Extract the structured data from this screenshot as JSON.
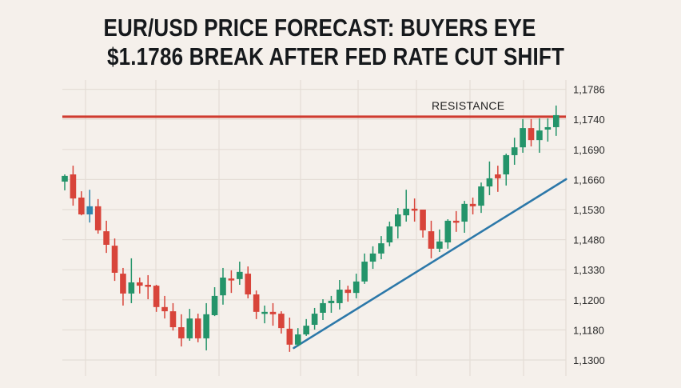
{
  "chart_data": {
    "type": "candlestick",
    "title_lines": [
      "EUR/USD PRICE FORECAST: BUYERS EYE",
      "$1.1786 BREAK AFTER FED RATE CUT SHIFT"
    ],
    "y_unit_note": "levels 0-9 correspond to the printed tick labels, bottom to top",
    "y_ticks": [
      {
        "level": 9,
        "label": "1,1786"
      },
      {
        "level": 8,
        "label": "1,1740"
      },
      {
        "level": 7,
        "label": "1,1690"
      },
      {
        "level": 6,
        "label": "1,1660"
      },
      {
        "level": 5,
        "label": "1,1530"
      },
      {
        "level": 4,
        "label": "1,1480"
      },
      {
        "level": 3,
        "label": "1,1330"
      },
      {
        "level": 2,
        "label": "1,1200"
      },
      {
        "level": 1,
        "label": "1,1180"
      },
      {
        "level": 0,
        "label": "1,1300"
      }
    ],
    "ylim": [
      -0.5,
      9.3
    ],
    "grid": true,
    "colors": {
      "up": "#24946a",
      "down": "#d8443a",
      "neutral": "#2f85ad",
      "resistance": "#cf3b2f",
      "trendline": "#2c78a9",
      "grid": "#e4ddd6"
    },
    "resistance": {
      "label": "RESISTANCE",
      "level": 8.09
    },
    "trendline": {
      "from": {
        "index": 27.5,
        "level": 0.4
      },
      "to": {
        "index": 60.2,
        "level": 6.01
      }
    },
    "candles": [
      [
        5.93,
        6.17,
        5.64,
        6.12
      ],
      [
        6.17,
        6.46,
        5.13,
        5.37
      ],
      [
        5.4,
        5.61,
        4.81,
        4.84
      ],
      [
        5.11,
        5.66,
        4.57,
        4.84,
        "neutral"
      ],
      [
        5.11,
        5.35,
        4.2,
        4.31
      ],
      [
        4.28,
        4.63,
        3.56,
        3.83
      ],
      [
        3.8,
        4.04,
        2.63,
        2.9
      ],
      [
        2.87,
        3.06,
        1.81,
        2.21
      ],
      [
        2.21,
        3.38,
        1.89,
        2.58
      ],
      [
        2.58,
        2.74,
        2.21,
        2.47
      ],
      [
        2.5,
        2.82,
        2.02,
        2.45
      ],
      [
        2.47,
        2.5,
        1.6,
        1.76
      ],
      [
        1.76,
        2.13,
        1.38,
        1.62
      ],
      [
        1.62,
        1.89,
        0.98,
        1.09
      ],
      [
        1.09,
        1.52,
        0.45,
        0.72
      ],
      [
        0.72,
        1.7,
        0.64,
        1.38
      ],
      [
        1.38,
        1.54,
        0.59,
        0.72
      ],
      [
        0.72,
        1.89,
        0.32,
        1.52
      ],
      [
        1.49,
        2.42,
        1.46,
        2.13
      ],
      [
        2.15,
        3.06,
        1.84,
        2.74
      ],
      [
        2.71,
        2.98,
        2.23,
        2.66
      ],
      [
        2.69,
        3.27,
        2.5,
        2.93
      ],
      [
        2.87,
        3.11,
        2.05,
        2.18
      ],
      [
        2.18,
        2.31,
        1.36,
        1.6
      ],
      [
        1.54,
        1.81,
        1.22,
        1.6
      ],
      [
        1.6,
        1.89,
        1.14,
        1.52
      ],
      [
        1.54,
        1.62,
        0.88,
        1.06
      ],
      [
        1.04,
        1.41,
        0.27,
        0.51
      ],
      [
        0.51,
        1.06,
        0.45,
        0.85
      ],
      [
        0.85,
        1.36,
        0.8,
        1.14
      ],
      [
        1.17,
        1.73,
        1.01,
        1.54
      ],
      [
        1.57,
        2.02,
        1.33,
        1.89
      ],
      [
        1.89,
        2.13,
        1.57,
        1.97
      ],
      [
        1.89,
        2.66,
        1.68,
        2.34
      ],
      [
        2.34,
        2.47,
        1.94,
        2.23
      ],
      [
        2.23,
        2.87,
        2.05,
        2.61
      ],
      [
        2.61,
        3.54,
        2.53,
        3.27
      ],
      [
        3.27,
        3.78,
        3.03,
        3.54
      ],
      [
        3.54,
        4.12,
        3.35,
        3.88
      ],
      [
        3.91,
        4.6,
        3.78,
        4.44
      ],
      [
        4.44,
        5.05,
        4.04,
        4.84
      ],
      [
        4.81,
        5.66,
        4.6,
        5.03
      ],
      [
        5.03,
        5.37,
        4.6,
        4.97
      ],
      [
        5.0,
        5.0,
        4.07,
        4.31
      ],
      [
        4.28,
        4.63,
        3.38,
        3.7
      ],
      [
        3.7,
        4.34,
        3.59,
        3.94
      ],
      [
        3.91,
        4.68,
        3.7,
        4.63
      ],
      [
        4.63,
        4.95,
        4.26,
        4.6
      ],
      [
        4.6,
        5.29,
        4.23,
        5.19
      ],
      [
        5.19,
        5.4,
        4.84,
        5.11
      ],
      [
        5.13,
        5.9,
        4.89,
        5.77
      ],
      [
        5.77,
        6.6,
        5.48,
        6.04
      ],
      [
        6.17,
        6.46,
        5.59,
        6.04
      ],
      [
        6.17,
        6.86,
        5.8,
        6.81
      ],
      [
        6.81,
        7.39,
        6.49,
        7.07
      ],
      [
        7.07,
        8.01,
        6.89,
        7.71
      ],
      [
        7.71,
        8.01,
        7.1,
        7.31
      ],
      [
        7.31,
        8.03,
        6.89,
        7.63
      ],
      [
        7.66,
        8.03,
        7.26,
        7.74
      ],
      [
        7.74,
        8.46,
        7.45,
        8.14
      ]
    ],
    "candle_format": [
      "open",
      "high",
      "low",
      "close",
      "color_override?"
    ]
  }
}
